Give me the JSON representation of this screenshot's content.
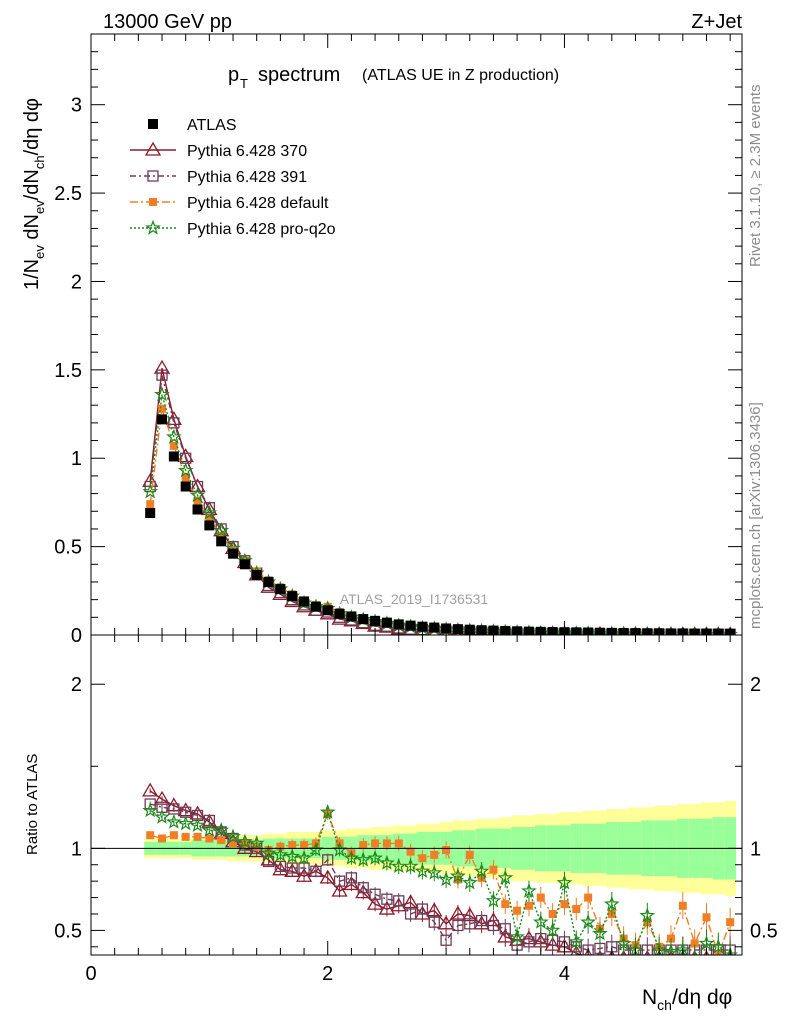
{
  "header": {
    "left": "13000 GeV pp",
    "right": "Z+Jet"
  },
  "side_labels": {
    "top": "Rivet 3.1.10, ≥ 2.3M events",
    "bottom": "mcplots.cern.ch [arXiv:1306.3436]"
  },
  "chart_data": {
    "type": "line",
    "title": "p_T spectrum (ATLAS UE in Z production)",
    "title_main": "spectrum",
    "title_sub": "(ATLAS UE in Z production)",
    "watermark": "ATLAS_2019_I1736531",
    "xlabel": "N_ch/dη dφ",
    "ylabel": "1/N_ev dN_ev/dN_ch/dη dφ",
    "ratio_ylabel": "Ratio to ATLAS",
    "xlim": [
      0,
      5.5
    ],
    "ylim": [
      0,
      3.4
    ],
    "ratio_ylim": [
      0.35,
      2.3
    ],
    "x_ticks": [
      "0",
      "2",
      "4"
    ],
    "y_ticks": [
      "0",
      "0.5",
      "1",
      "1.5",
      "2",
      "2.5",
      "3"
    ],
    "ratio_ticks": [
      "0.5",
      "1",
      "2"
    ],
    "legend_position": "top-left",
    "x": [
      0.5,
      0.6,
      0.7,
      0.8,
      0.9,
      1.0,
      1.1,
      1.2,
      1.3,
      1.4,
      1.5,
      1.6,
      1.7,
      1.8,
      1.9,
      2.0,
      2.1,
      2.2,
      2.3,
      2.4,
      2.5,
      2.6,
      2.7,
      2.8,
      2.9,
      3.0,
      3.1,
      3.2,
      3.3,
      3.4,
      3.5,
      3.6,
      3.7,
      3.8,
      3.9,
      4.0,
      4.1,
      4.2,
      4.3,
      4.4,
      4.5,
      4.6,
      4.7,
      4.8,
      4.9,
      5.0,
      5.1,
      5.2,
      5.3,
      5.4
    ],
    "data_series": {
      "name": "ATLAS",
      "values": [
        0.69,
        1.22,
        1.01,
        0.84,
        0.71,
        0.62,
        0.53,
        0.46,
        0.4,
        0.34,
        0.3,
        0.26,
        0.22,
        0.19,
        0.16,
        0.14,
        0.12,
        0.105,
        0.09,
        0.08,
        0.07,
        0.06,
        0.053,
        0.047,
        0.042,
        0.037,
        0.033,
        0.03,
        0.027,
        0.025,
        0.023,
        0.021,
        0.019,
        0.018,
        0.017,
        0.016,
        0.015,
        0.014,
        0.013,
        0.012,
        0.011,
        0.011,
        0.01,
        0.01,
        0.009,
        0.009,
        0.008,
        0.008,
        0.008,
        0.007
      ],
      "band_inner": [
        0.04,
        0.04,
        0.04,
        0.04,
        0.05,
        0.05,
        0.05,
        0.05,
        0.05,
        0.05,
        0.06,
        0.06,
        0.06,
        0.06,
        0.06,
        0.07,
        0.07,
        0.07,
        0.08,
        0.08,
        0.08,
        0.09,
        0.09,
        0.1,
        0.1,
        0.1,
        0.11,
        0.11,
        0.12,
        0.12,
        0.12,
        0.13,
        0.13,
        0.14,
        0.14,
        0.14,
        0.15,
        0.15,
        0.15,
        0.16,
        0.16,
        0.16,
        0.17,
        0.17,
        0.17,
        0.18,
        0.18,
        0.18,
        0.19,
        0.19
      ],
      "band_outer": [
        0.06,
        0.06,
        0.06,
        0.06,
        0.07,
        0.07,
        0.07,
        0.08,
        0.08,
        0.08,
        0.09,
        0.09,
        0.1,
        0.1,
        0.1,
        0.11,
        0.11,
        0.12,
        0.12,
        0.13,
        0.13,
        0.14,
        0.14,
        0.15,
        0.15,
        0.16,
        0.17,
        0.17,
        0.18,
        0.18,
        0.19,
        0.2,
        0.2,
        0.21,
        0.21,
        0.22,
        0.22,
        0.23,
        0.23,
        0.24,
        0.24,
        0.25,
        0.25,
        0.26,
        0.26,
        0.27,
        0.27,
        0.28,
        0.28,
        0.29
      ]
    },
    "series": [
      {
        "name": "Pythia 6.428 370",
        "color": "#8b1a2b",
        "marker": "triangle",
        "dash": "",
        "values": [
          0.87,
          1.51,
          1.22,
          1.01,
          0.84,
          0.71,
          0.59,
          0.49,
          0.41,
          0.34,
          0.27,
          0.23,
          0.19,
          0.16,
          0.14,
          0.12,
          0.09,
          0.08,
          0.065,
          0.05,
          0.045,
          0.035,
          0.03,
          0.03,
          0.025,
          0.02,
          0.02,
          0.017,
          0.016,
          0.013,
          0.01,
          0.009,
          0.008,
          0.007,
          0.007,
          0.006,
          0.005,
          0.005,
          0.005,
          0.004,
          0.004,
          0.004,
          0.003,
          0.003,
          0.003,
          0.003,
          0.003,
          0.003,
          0.003,
          0.003
        ],
        "ratio": [
          1.35,
          1.3,
          1.26,
          1.23,
          1.21,
          1.16,
          1.09,
          1.04,
          1.0,
          0.98,
          0.93,
          0.87,
          0.86,
          0.83,
          0.86,
          0.82,
          0.74,
          0.78,
          0.73,
          0.66,
          0.63,
          0.65,
          0.67,
          0.6,
          0.62,
          0.54,
          0.6,
          0.59,
          0.54,
          0.56,
          0.46,
          0.44,
          0.45,
          0.43,
          0.41,
          0.4,
          0.36,
          0.34,
          0.33,
          0.33,
          0.33,
          0.33,
          0.33,
          0.33,
          0.33,
          0.33,
          0.33,
          0.33,
          0.33,
          0.33
        ]
      },
      {
        "name": "Pythia 6.428 391",
        "color": "#6e3b55",
        "marker": "square-open",
        "dash": "6,3,2,3",
        "values": [
          0.84,
          1.47,
          1.2,
          1.0,
          0.84,
          0.72,
          0.6,
          0.5,
          0.42,
          0.35,
          0.28,
          0.24,
          0.2,
          0.17,
          0.14,
          0.13,
          0.1,
          0.085,
          0.07,
          0.055,
          0.05,
          0.04,
          0.033,
          0.03,
          0.027,
          0.022,
          0.02,
          0.018,
          0.016,
          0.014,
          0.011,
          0.01,
          0.009,
          0.008,
          0.007,
          0.007,
          0.006,
          0.005,
          0.005,
          0.005,
          0.004,
          0.004,
          0.004,
          0.004,
          0.004,
          0.004,
          0.004,
          0.004,
          0.004,
          0.004
        ],
        "ratio": [
          1.27,
          1.25,
          1.24,
          1.22,
          1.2,
          1.17,
          1.1,
          1.06,
          1.02,
          1.0,
          0.92,
          0.89,
          0.88,
          0.88,
          0.86,
          0.93,
          0.8,
          0.82,
          0.76,
          0.72,
          0.69,
          0.68,
          0.6,
          0.63,
          0.55,
          0.44,
          0.53,
          0.54,
          0.56,
          0.53,
          0.51,
          0.41,
          0.43,
          0.45,
          0.44,
          0.43,
          0.4,
          0.38,
          0.39,
          0.4,
          0.38,
          0.38,
          0.38,
          0.38,
          0.38,
          0.38,
          0.38,
          0.38,
          0.38,
          0.38
        ]
      },
      {
        "name": "Pythia 6.428 default",
        "color": "#f07e26",
        "marker": "square",
        "dash": "8,3,2,3",
        "values": [
          0.74,
          1.28,
          1.07,
          0.89,
          0.76,
          0.66,
          0.56,
          0.48,
          0.42,
          0.36,
          0.31,
          0.27,
          0.23,
          0.19,
          0.17,
          0.16,
          0.13,
          0.11,
          0.095,
          0.085,
          0.075,
          0.065,
          0.055,
          0.05,
          0.045,
          0.04,
          0.035,
          0.03,
          0.03,
          0.026,
          0.023,
          0.02,
          0.019,
          0.017,
          0.015,
          0.014,
          0.012,
          0.011,
          0.01,
          0.009,
          0.008,
          0.008,
          0.007,
          0.007,
          0.006,
          0.006,
          0.006,
          0.005,
          0.005,
          0.005
        ],
        "ratio": [
          1.08,
          1.06,
          1.08,
          1.07,
          1.07,
          1.06,
          1.05,
          1.03,
          1.03,
          1.01,
          0.99,
          1.01,
          1.02,
          1.02,
          1.03,
          1.21,
          1.03,
          0.97,
          1.02,
          1.03,
          1.03,
          1.03,
          0.98,
          0.94,
          0.96,
          0.99,
          0.81,
          0.96,
          0.82,
          0.87,
          0.66,
          0.62,
          0.65,
          0.7,
          0.6,
          0.66,
          0.63,
          0.7,
          0.51,
          0.6,
          0.45,
          0.41,
          0.55,
          0.4,
          0.45,
          0.65,
          0.42,
          0.58,
          0.35,
          0.55
        ]
      },
      {
        "name": "Pythia 6.428 pro-q2o",
        "color": "#1a8a1a",
        "marker": "star",
        "dash": "2,2",
        "values": [
          0.81,
          1.36,
          1.12,
          0.93,
          0.79,
          0.69,
          0.59,
          0.49,
          0.42,
          0.35,
          0.3,
          0.26,
          0.22,
          0.18,
          0.16,
          0.15,
          0.12,
          0.1,
          0.087,
          0.075,
          0.065,
          0.054,
          0.047,
          0.04,
          0.036,
          0.031,
          0.028,
          0.025,
          0.022,
          0.02,
          0.018,
          0.015,
          0.014,
          0.012,
          0.011,
          0.01,
          0.009,
          0.008,
          0.007,
          0.007,
          0.006,
          0.005,
          0.005,
          0.004,
          0.004,
          0.004,
          0.003,
          0.003,
          0.003,
          0.003
        ],
        "ratio": [
          1.23,
          1.19,
          1.16,
          1.15,
          1.14,
          1.11,
          1.11,
          1.07,
          1.04,
          1.03,
          0.97,
          0.96,
          0.95,
          0.94,
          0.99,
          1.22,
          0.99,
          0.94,
          0.93,
          0.94,
          0.91,
          0.89,
          0.89,
          0.86,
          0.85,
          0.81,
          0.83,
          0.79,
          0.86,
          0.68,
          0.82,
          0.46,
          0.74,
          0.55,
          0.5,
          0.79,
          0.43,
          0.55,
          0.48,
          0.66,
          0.42,
          0.38,
          0.59,
          0.38,
          0.37,
          0.38,
          0.33,
          0.42,
          0.4,
          0.35
        ]
      }
    ]
  }
}
